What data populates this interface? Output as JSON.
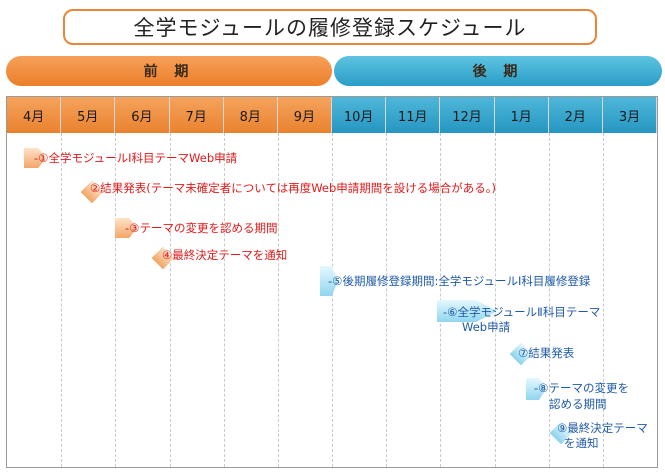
{
  "title": "全学モジュールの履修登録スケジュール",
  "terms": {
    "first": "前 期",
    "second": "後 期"
  },
  "months": [
    "4月",
    "5月",
    "6月",
    "7月",
    "8月",
    "9月",
    "10月",
    "11月",
    "12月",
    "1月",
    "2月",
    "3月"
  ],
  "events": [
    {
      "id": "e1",
      "line1": "-①全学モジュールⅠ科目テーマWeb申請",
      "line2": ""
    },
    {
      "id": "e2",
      "line1": "②結果発表(テーマ未確定者については再度Web申請期間を設ける場合がある。)",
      "line2": ""
    },
    {
      "id": "e3",
      "line1": "-③テーマの変更を認める期間",
      "line2": ""
    },
    {
      "id": "e4",
      "line1": "④最終決定テーマを通知",
      "line2": ""
    },
    {
      "id": "e5",
      "line1": "-⑤後期履修登録期間:全学モジュールⅠ科目履修登録",
      "line2": ""
    },
    {
      "id": "e6",
      "line1": "-⑥全学モジュールⅡ科目テーマ",
      "line2": "Web申請"
    },
    {
      "id": "e7",
      "line1": "⑦結果発表",
      "line2": ""
    },
    {
      "id": "e8",
      "line1": "-⑧テーマの変更を",
      "line2": "認める期間"
    },
    {
      "id": "e9",
      "line1": "⑨最終決定テーマ",
      "line2": "を通知"
    }
  ]
}
